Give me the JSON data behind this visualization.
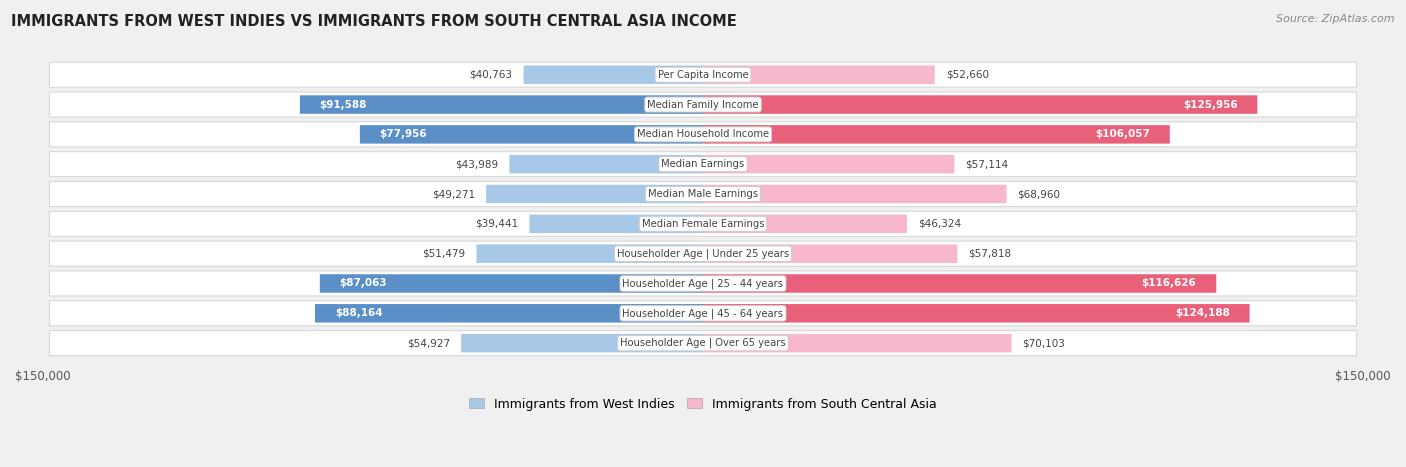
{
  "title": "IMMIGRANTS FROM WEST INDIES VS IMMIGRANTS FROM SOUTH CENTRAL ASIA INCOME",
  "source": "Source: ZipAtlas.com",
  "categories": [
    "Per Capita Income",
    "Median Family Income",
    "Median Household Income",
    "Median Earnings",
    "Median Male Earnings",
    "Median Female Earnings",
    "Householder Age | Under 25 years",
    "Householder Age | 25 - 44 years",
    "Householder Age | 45 - 64 years",
    "Householder Age | Over 65 years"
  ],
  "west_indies": [
    40763,
    91588,
    77956,
    43989,
    49271,
    39441,
    51479,
    87063,
    88164,
    54927
  ],
  "south_central_asia": [
    52660,
    125956,
    106057,
    57114,
    68960,
    46324,
    57818,
    116626,
    124188,
    70103
  ],
  "west_indies_labels": [
    "$40,763",
    "$91,588",
    "$77,956",
    "$43,989",
    "$49,271",
    "$39,441",
    "$51,479",
    "$87,063",
    "$88,164",
    "$54,927"
  ],
  "south_central_asia_labels": [
    "$52,660",
    "$125,956",
    "$106,057",
    "$57,114",
    "$68,960",
    "$46,324",
    "$57,818",
    "$116,626",
    "$124,188",
    "$70,103"
  ],
  "color_west_indies_light": "#a8c8e8",
  "color_west_indies_dark": "#5b8fc8",
  "color_south_central_asia_light": "#f8b8cc",
  "color_south_central_asia_dark": "#e8607a",
  "max_value": 150000,
  "background_color": "#f0f0f0",
  "row_bg_color": "#ffffff",
  "row_alt_bg_color": "#f5f5f5",
  "legend_label_west": "Immigrants from West Indies",
  "legend_label_south": "Immigrants from South Central Asia",
  "wi_large_threshold": 70000,
  "sa_large_threshold": 90000
}
